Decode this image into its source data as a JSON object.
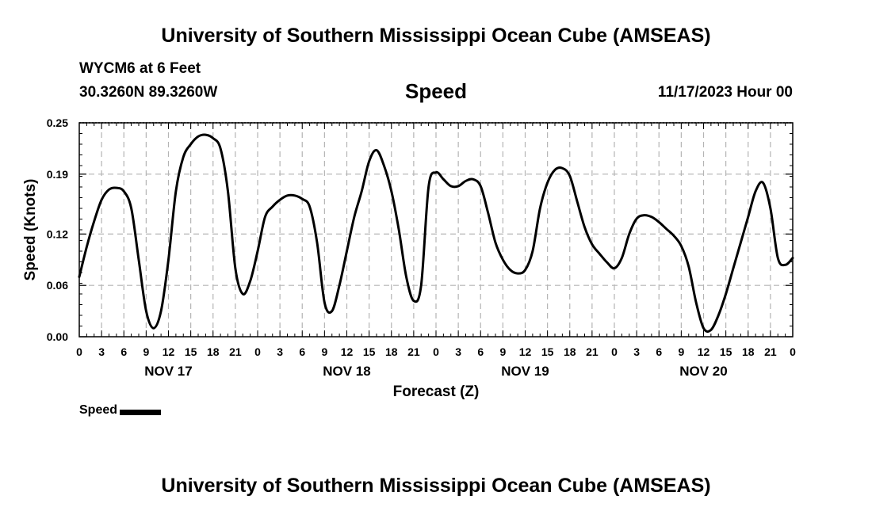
{
  "header": {
    "title": "University of Southern Mississippi Ocean Cube (AMSEAS)",
    "station": "WYCM6 at 6 Feet",
    "location": "30.3260N  89.3260W",
    "datetime": "11/17/2023 Hour 00"
  },
  "footer": {
    "title": "University of Southern Mississippi Ocean Cube (AMSEAS)"
  },
  "colors": {
    "line": "#000000",
    "grid": "#b4b4b4",
    "axis": "#000000"
  },
  "chart_data": {
    "type": "line",
    "title": "Speed",
    "xlabel": "Forecast (Z)",
    "ylabel": "Speed (Knots)",
    "xlim": [
      0,
      96
    ],
    "ylim": [
      0,
      0.25
    ],
    "yticks": [
      0.0,
      0.06,
      0.12,
      0.19,
      0.25
    ],
    "ytick_labels": [
      "0.00",
      "0.06",
      "0.12",
      "0.19",
      "0.25"
    ],
    "xtick_step_hours": 3,
    "xtick_labels": [
      "0",
      "3",
      "6",
      "9",
      "12",
      "15",
      "18",
      "21",
      "0",
      "3",
      "6",
      "9",
      "12",
      "15",
      "18",
      "21",
      "0",
      "3",
      "6",
      "9",
      "12",
      "15",
      "18",
      "21",
      "0",
      "3",
      "6",
      "9",
      "12",
      "15",
      "18",
      "21",
      "0"
    ],
    "day_labels": [
      {
        "hour": 12,
        "label": "NOV 17"
      },
      {
        "hour": 36,
        "label": "NOV 18"
      },
      {
        "hour": 60,
        "label": "NOV 19"
      },
      {
        "hour": 84,
        "label": "NOV 20"
      }
    ],
    "grid": true,
    "legend": {
      "position": "bottom-left",
      "entries": [
        "Speed"
      ]
    },
    "series": [
      {
        "name": "Speed",
        "x": [
          0,
          1,
          2,
          3,
          4,
          5,
          6,
          7,
          8,
          9,
          10,
          11,
          12,
          13,
          14,
          15,
          16,
          17,
          18,
          19,
          20,
          21,
          22,
          23,
          24,
          25,
          26,
          27,
          28,
          29,
          30,
          31,
          32,
          33,
          34,
          35,
          36,
          37,
          38,
          39,
          40,
          41,
          42,
          43,
          44,
          45,
          46,
          47,
          48,
          49,
          50,
          51,
          52,
          53,
          54,
          55,
          56,
          57,
          58,
          59,
          60,
          61,
          62,
          63,
          64,
          65,
          66,
          67,
          68,
          69,
          70,
          71,
          72,
          73,
          74,
          75,
          76,
          77,
          78,
          79,
          80,
          81,
          82,
          83,
          84,
          85,
          86,
          87,
          88,
          89,
          90,
          91,
          92,
          93,
          94,
          95,
          96
        ],
        "values": [
          0.07,
          0.105,
          0.135,
          0.16,
          0.172,
          0.174,
          0.17,
          0.15,
          0.09,
          0.03,
          0.01,
          0.03,
          0.09,
          0.17,
          0.21,
          0.225,
          0.234,
          0.236,
          0.232,
          0.22,
          0.17,
          0.08,
          0.05,
          0.065,
          0.1,
          0.14,
          0.152,
          0.16,
          0.165,
          0.165,
          0.161,
          0.152,
          0.11,
          0.04,
          0.03,
          0.06,
          0.1,
          0.14,
          0.17,
          0.205,
          0.218,
          0.2,
          0.17,
          0.125,
          0.07,
          0.042,
          0.06,
          0.175,
          0.192,
          0.184,
          0.176,
          0.176,
          0.182,
          0.184,
          0.176,
          0.145,
          0.11,
          0.09,
          0.078,
          0.074,
          0.078,
          0.1,
          0.15,
          0.18,
          0.195,
          0.197,
          0.188,
          0.158,
          0.128,
          0.108,
          0.097,
          0.087,
          0.08,
          0.092,
          0.12,
          0.138,
          0.142,
          0.14,
          0.134,
          0.126,
          0.118,
          0.106,
          0.082,
          0.04,
          0.01,
          0.008,
          0.025,
          0.05,
          0.08,
          0.11,
          0.14,
          0.17,
          0.18,
          0.15,
          0.092,
          0.084,
          0.092
        ]
      }
    ]
  }
}
